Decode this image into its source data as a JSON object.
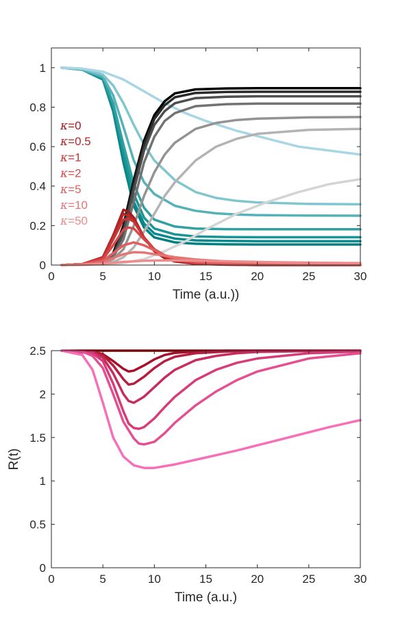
{
  "chart_data": [
    {
      "type": "line",
      "xlabel": "Time (a.u.))",
      "ylabel": "",
      "xlim": [
        0,
        30
      ],
      "ylim": [
        0,
        1.1
      ],
      "xticks": [
        "0",
        "5",
        "10",
        "15",
        "20",
        "25",
        "30"
      ],
      "yticks": [
        "0",
        "0.2",
        "0.4",
        "0.6",
        "0.8",
        "1"
      ],
      "grid": false,
      "legend_position": "left",
      "legend": [
        {
          "symbol": "κ",
          "label": "=0",
          "color": "#a11b1b"
        },
        {
          "symbol": "κ",
          "label": "=0.5",
          "color": "#b82727"
        },
        {
          "symbol": "κ",
          "label": "=1",
          "color": "#c83434"
        },
        {
          "symbol": "κ",
          "label": "=2",
          "color": "#d64848"
        },
        {
          "symbol": "κ",
          "label": "=5",
          "color": "#df6060"
        },
        {
          "symbol": "κ",
          "label": "=10",
          "color": "#e67575"
        },
        {
          "symbol": "κ",
          "label": "=50",
          "color": "#ec8c8c"
        }
      ],
      "series": [
        {
          "group": "susceptible",
          "color": "#008080",
          "x": [
            1,
            3,
            5,
            6,
            7,
            8,
            9,
            10,
            12,
            14,
            17,
            20,
            25,
            30
          ],
          "values": [
            1.0,
            0.99,
            0.94,
            0.78,
            0.52,
            0.3,
            0.19,
            0.14,
            0.115,
            0.108,
            0.105,
            0.104,
            0.104,
            0.104
          ]
        },
        {
          "group": "susceptible",
          "color": "#0a8a8a",
          "x": [
            1,
            3,
            5,
            6,
            7,
            8,
            9,
            10,
            12,
            14,
            17,
            20,
            25,
            30
          ],
          "values": [
            1.0,
            0.99,
            0.94,
            0.79,
            0.54,
            0.32,
            0.21,
            0.16,
            0.134,
            0.125,
            0.122,
            0.121,
            0.121,
            0.121
          ]
        },
        {
          "group": "susceptible",
          "color": "#1a9494",
          "x": [
            1,
            3,
            5,
            6,
            7,
            8,
            9,
            10,
            12,
            14,
            17,
            20,
            25,
            30
          ],
          "values": [
            1.0,
            0.99,
            0.945,
            0.8,
            0.57,
            0.36,
            0.24,
            0.185,
            0.155,
            0.145,
            0.142,
            0.141,
            0.141,
            0.141
          ]
        },
        {
          "group": "susceptible",
          "color": "#30a0a3",
          "x": [
            1,
            3,
            5,
            6,
            7,
            8,
            9,
            10,
            12,
            14,
            17,
            20,
            25,
            30
          ],
          "values": [
            1.0,
            0.99,
            0.95,
            0.82,
            0.61,
            0.41,
            0.29,
            0.23,
            0.195,
            0.185,
            0.182,
            0.181,
            0.181,
            0.181
          ]
        },
        {
          "group": "susceptible",
          "color": "#55b2b7",
          "x": [
            1,
            3,
            5,
            6,
            7,
            8,
            9,
            10,
            12,
            14,
            16,
            18,
            20,
            25,
            30
          ],
          "values": [
            1.0,
            0.99,
            0.955,
            0.86,
            0.7,
            0.53,
            0.42,
            0.36,
            0.3,
            0.275,
            0.262,
            0.256,
            0.253,
            0.251,
            0.25
          ]
        },
        {
          "group": "susceptible",
          "color": "#80c6cf",
          "x": [
            1,
            3,
            5,
            6,
            7,
            8,
            9,
            10,
            12,
            14,
            16,
            18,
            20,
            25,
            30
          ],
          "values": [
            1.0,
            0.995,
            0.965,
            0.91,
            0.82,
            0.71,
            0.61,
            0.53,
            0.43,
            0.37,
            0.34,
            0.325,
            0.317,
            0.31,
            0.308
          ]
        },
        {
          "group": "susceptible",
          "color": "#a8d6e5",
          "x": [
            1,
            3,
            5,
            7,
            9,
            11,
            13,
            15,
            18,
            21,
            24,
            27,
            30
          ],
          "values": [
            1.0,
            0.995,
            0.98,
            0.94,
            0.88,
            0.82,
            0.77,
            0.73,
            0.68,
            0.64,
            0.6,
            0.58,
            0.56
          ]
        },
        {
          "group": "recovered",
          "color": "#000000",
          "x": [
            1,
            3,
            5,
            6,
            7,
            8,
            9,
            10,
            11,
            12,
            14,
            17,
            20,
            25,
            30
          ],
          "values": [
            0.0,
            0.005,
            0.02,
            0.06,
            0.2,
            0.43,
            0.63,
            0.76,
            0.83,
            0.87,
            0.89,
            0.895,
            0.896,
            0.896,
            0.896
          ]
        },
        {
          "group": "recovered",
          "color": "#2a2a2a",
          "x": [
            1,
            3,
            5,
            6,
            7,
            8,
            9,
            10,
            11,
            12,
            14,
            17,
            20,
            25,
            30
          ],
          "values": [
            0.0,
            0.005,
            0.02,
            0.05,
            0.18,
            0.41,
            0.61,
            0.74,
            0.81,
            0.85,
            0.872,
            0.877,
            0.878,
            0.878,
            0.878
          ]
        },
        {
          "group": "recovered",
          "color": "#4e4e4e",
          "x": [
            1,
            3,
            5,
            6,
            7,
            8,
            9,
            10,
            11,
            12,
            14,
            17,
            20,
            25,
            30
          ],
          "values": [
            0.0,
            0.005,
            0.018,
            0.05,
            0.16,
            0.38,
            0.58,
            0.71,
            0.78,
            0.82,
            0.846,
            0.853,
            0.855,
            0.855,
            0.855
          ]
        },
        {
          "group": "recovered",
          "color": "#727272",
          "x": [
            1,
            3,
            5,
            6,
            7,
            8,
            9,
            10,
            11,
            12,
            14,
            17,
            20,
            25,
            30
          ],
          "values": [
            0.0,
            0.005,
            0.015,
            0.04,
            0.13,
            0.32,
            0.52,
            0.65,
            0.73,
            0.77,
            0.805,
            0.815,
            0.818,
            0.818,
            0.818
          ]
        },
        {
          "group": "recovered",
          "color": "#939393",
          "x": [
            1,
            3,
            5,
            6,
            7,
            8,
            9,
            10,
            11,
            12,
            14,
            16,
            18,
            20,
            25,
            30
          ],
          "values": [
            0.0,
            0.003,
            0.01,
            0.03,
            0.08,
            0.2,
            0.35,
            0.47,
            0.56,
            0.62,
            0.69,
            0.72,
            0.735,
            0.742,
            0.748,
            0.75
          ]
        },
        {
          "group": "recovered",
          "color": "#b3b3b3",
          "x": [
            1,
            3,
            5,
            6,
            7,
            8,
            9,
            10,
            11,
            12,
            14,
            16,
            18,
            20,
            25,
            30
          ],
          "values": [
            0.0,
            0.002,
            0.005,
            0.015,
            0.04,
            0.09,
            0.17,
            0.26,
            0.35,
            0.42,
            0.53,
            0.6,
            0.64,
            0.665,
            0.685,
            0.69
          ]
        },
        {
          "group": "recovered",
          "color": "#d4d4d4",
          "x": [
            1,
            3,
            5,
            7,
            9,
            11,
            13,
            15,
            18,
            21,
            24,
            27,
            30
          ],
          "values": [
            0.0,
            0.001,
            0.003,
            0.01,
            0.03,
            0.07,
            0.12,
            0.18,
            0.26,
            0.32,
            0.37,
            0.41,
            0.435
          ]
        },
        {
          "group": "infected",
          "color": "#a11b1b",
          "x": [
            1,
            3,
            5,
            6,
            7,
            7.5,
            8,
            9,
            10,
            11,
            12,
            14,
            17,
            20,
            30
          ],
          "values": [
            0.0,
            0.005,
            0.04,
            0.15,
            0.28,
            0.27,
            0.24,
            0.14,
            0.07,
            0.035,
            0.018,
            0.006,
            0.002,
            0.0,
            0.0
          ]
        },
        {
          "group": "infected",
          "color": "#b82727",
          "x": [
            1,
            3,
            5,
            6,
            7,
            7.5,
            8,
            9,
            10,
            11,
            12,
            14,
            17,
            20,
            30
          ],
          "values": [
            0.0,
            0.005,
            0.04,
            0.15,
            0.26,
            0.25,
            0.23,
            0.14,
            0.075,
            0.04,
            0.02,
            0.007,
            0.002,
            0.0,
            0.0
          ]
        },
        {
          "group": "infected",
          "color": "#c83434",
          "x": [
            1,
            3,
            5,
            6,
            7,
            7.5,
            8,
            9,
            10,
            11,
            12,
            14,
            17,
            20,
            30
          ],
          "values": [
            0.0,
            0.005,
            0.035,
            0.13,
            0.23,
            0.235,
            0.22,
            0.14,
            0.08,
            0.045,
            0.025,
            0.009,
            0.003,
            0.001,
            0.0
          ]
        },
        {
          "group": "infected",
          "color": "#d64848",
          "x": [
            1,
            3,
            5,
            6,
            7,
            7.5,
            8,
            9,
            10,
            11,
            12,
            14,
            17,
            20,
            30
          ],
          "values": [
            0.0,
            0.004,
            0.03,
            0.1,
            0.18,
            0.19,
            0.185,
            0.13,
            0.08,
            0.05,
            0.03,
            0.012,
            0.004,
            0.001,
            0.0
          ]
        },
        {
          "group": "infected",
          "color": "#df6060",
          "x": [
            1,
            3,
            5,
            6,
            7,
            8,
            9,
            10,
            11,
            12,
            14,
            17,
            20,
            30
          ],
          "values": [
            0.0,
            0.003,
            0.02,
            0.06,
            0.1,
            0.115,
            0.1,
            0.075,
            0.05,
            0.035,
            0.018,
            0.008,
            0.004,
            0.001
          ]
        },
        {
          "group": "infected",
          "color": "#e67575",
          "x": [
            1,
            3,
            5,
            6,
            7,
            8,
            9,
            10,
            12,
            14,
            17,
            20,
            25,
            30
          ],
          "values": [
            0.0,
            0.002,
            0.012,
            0.035,
            0.055,
            0.065,
            0.063,
            0.055,
            0.04,
            0.028,
            0.018,
            0.012,
            0.007,
            0.005
          ]
        },
        {
          "group": "infected",
          "color": "#ec8c8c",
          "x": [
            1,
            3,
            5,
            7,
            9,
            11,
            13,
            15,
            18,
            21,
            24,
            27,
            30
          ],
          "values": [
            0.0,
            0.001,
            0.006,
            0.016,
            0.022,
            0.024,
            0.023,
            0.021,
            0.018,
            0.015,
            0.013,
            0.011,
            0.01
          ]
        }
      ]
    },
    {
      "type": "line",
      "xlabel": "Time (a.u.)",
      "ylabel": "R(t)",
      "xlim": [
        0,
        30
      ],
      "ylim": [
        0,
        2.5
      ],
      "xticks": [
        "0",
        "5",
        "10",
        "15",
        "20",
        "25",
        "30"
      ],
      "yticks": [
        "0",
        "0.5",
        "1",
        "1.5",
        "2",
        "2.5"
      ],
      "grid": false,
      "series": [
        {
          "color": "#8b0000",
          "x": [
            1,
            30
          ],
          "values": [
            2.5,
            2.5
          ]
        },
        {
          "color": "#a5102a",
          "x": [
            1,
            4,
            5,
            6,
            7,
            7.5,
            8,
            9,
            10,
            11,
            12,
            14,
            17,
            20,
            30
          ],
          "values": [
            2.5,
            2.49,
            2.46,
            2.38,
            2.29,
            2.26,
            2.27,
            2.33,
            2.4,
            2.45,
            2.475,
            2.49,
            2.5,
            2.5,
            2.5
          ]
        },
        {
          "color": "#b81d40",
          "x": [
            1,
            4,
            5,
            6,
            7,
            7.5,
            8,
            9,
            10,
            11,
            12,
            14,
            17,
            20,
            30
          ],
          "values": [
            2.5,
            2.49,
            2.45,
            2.33,
            2.17,
            2.11,
            2.12,
            2.2,
            2.3,
            2.38,
            2.43,
            2.47,
            2.49,
            2.5,
            2.5
          ]
        },
        {
          "color": "#c82c5c",
          "x": [
            1,
            4,
            5,
            6,
            7,
            7.5,
            8,
            9,
            10,
            11,
            12,
            14,
            16,
            18,
            20,
            25,
            30
          ],
          "values": [
            2.5,
            2.48,
            2.42,
            2.24,
            2.0,
            1.92,
            1.9,
            1.97,
            2.08,
            2.19,
            2.28,
            2.39,
            2.44,
            2.47,
            2.485,
            2.495,
            2.5
          ]
        },
        {
          "color": "#d83c78",
          "x": [
            1,
            4,
            5,
            6,
            7,
            7.5,
            8,
            8.5,
            9,
            10,
            11,
            12,
            14,
            16,
            18,
            20,
            25,
            30
          ],
          "values": [
            2.5,
            2.47,
            2.38,
            2.12,
            1.8,
            1.66,
            1.61,
            1.6,
            1.62,
            1.72,
            1.85,
            1.97,
            2.16,
            2.28,
            2.36,
            2.41,
            2.47,
            2.49
          ]
        },
        {
          "color": "#e64e92",
          "x": [
            1,
            3,
            4,
            5,
            6,
            7,
            8,
            8.5,
            9,
            10,
            11,
            12,
            14,
            16,
            18,
            20,
            25,
            30
          ],
          "values": [
            2.5,
            2.49,
            2.44,
            2.3,
            2.0,
            1.68,
            1.49,
            1.43,
            1.42,
            1.45,
            1.55,
            1.67,
            1.87,
            2.03,
            2.16,
            2.26,
            2.41,
            2.47
          ]
        },
        {
          "color": "#f76fb8",
          "x": [
            1,
            3,
            4,
            5,
            6,
            7,
            8,
            9,
            10,
            12,
            15,
            18,
            21,
            24,
            27,
            30
          ],
          "values": [
            2.5,
            2.45,
            2.28,
            1.9,
            1.5,
            1.28,
            1.18,
            1.15,
            1.15,
            1.19,
            1.27,
            1.35,
            1.44,
            1.53,
            1.62,
            1.7
          ]
        }
      ]
    }
  ]
}
